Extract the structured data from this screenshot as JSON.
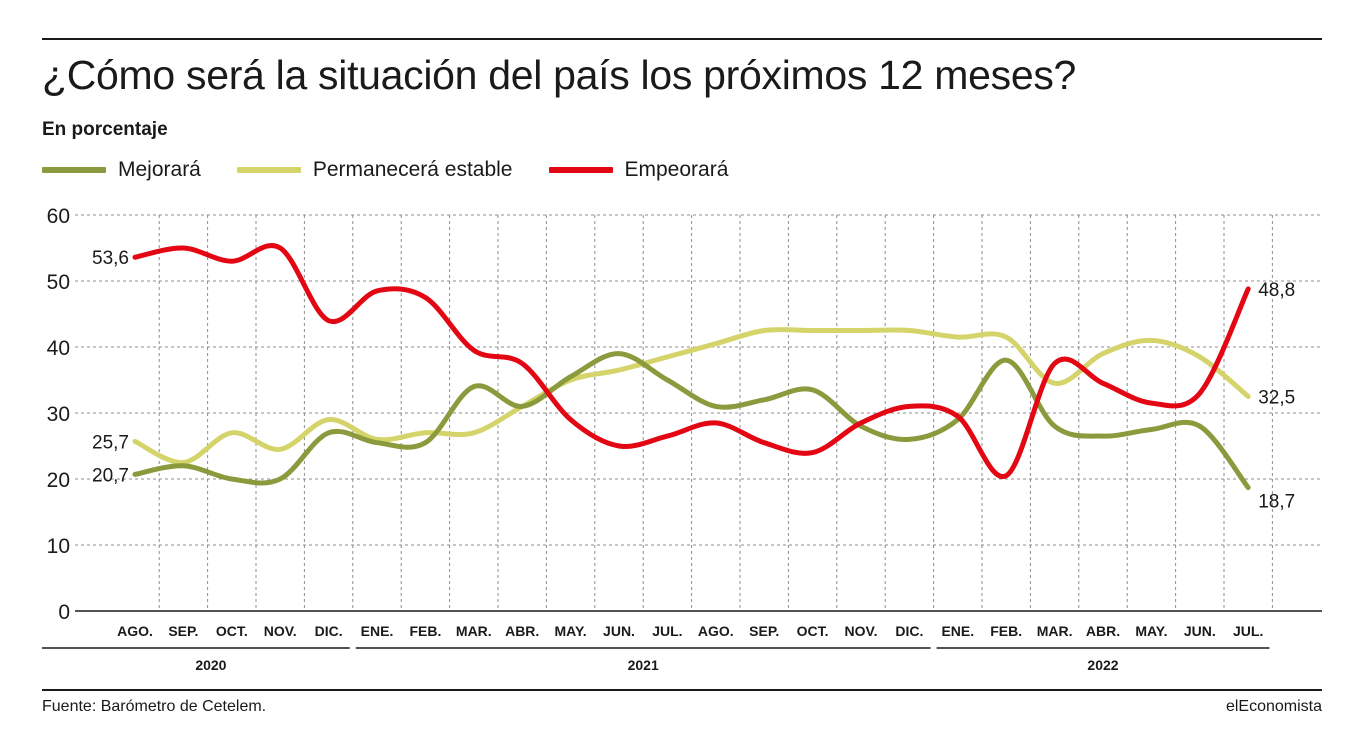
{
  "header": {
    "title": "¿Cómo será la situación del país los próximos 12 meses?",
    "subtitle": "En porcentaje"
  },
  "footer": {
    "source": "Fuente: Barómetro de Cetelem.",
    "brand": "elEconomista"
  },
  "colors": {
    "mejorara": "#8a9a3c",
    "permanecera": "#d4d46b",
    "empeorara": "#e30613"
  },
  "chart_data": {
    "type": "line",
    "title": "¿Cómo será la situación del país los próximos 12 meses?",
    "subtitle": "En porcentaje",
    "categories": [
      "AGO.",
      "SEP.",
      "OCT.",
      "NOV.",
      "DIC.",
      "ENE.",
      "FEB.",
      "MAR.",
      "ABR.",
      "MAY.",
      "JUN.",
      "JUL.",
      "AGO.",
      "SEP.",
      "OCT.",
      "NOV.",
      "DIC.",
      "ENE.",
      "FEB.",
      "MAR.",
      "ABR.",
      "MAY.",
      "JUN.",
      "JUL."
    ],
    "years": [
      {
        "label": "2020",
        "start": 0,
        "end": 4
      },
      {
        "label": "2021",
        "start": 5,
        "end": 16
      },
      {
        "label": "2022",
        "start": 17,
        "end": 23
      }
    ],
    "ylim": [
      0,
      60
    ],
    "yticks": [
      0,
      10,
      20,
      30,
      40,
      50,
      60
    ],
    "grid": true,
    "legend_position": "top-left",
    "series": [
      {
        "name": "Mejorará",
        "color_key": "mejorara",
        "values": [
          20.7,
          22,
          20,
          20,
          27,
          25.5,
          25.5,
          34,
          31,
          35.5,
          39,
          35,
          31,
          32,
          33.5,
          28,
          26,
          29,
          38,
          28,
          26.5,
          27.5,
          28,
          18.7
        ],
        "start_label": "20,7",
        "end_label": "18,7"
      },
      {
        "name": "Permanecerá estable",
        "color_key": "permanecera",
        "values": [
          25.7,
          22.5,
          27,
          24.5,
          29,
          26,
          27,
          27,
          31,
          35,
          36.5,
          38.5,
          40.5,
          42.5,
          42.5,
          42.5,
          42.5,
          41.5,
          41.5,
          34.5,
          39,
          41,
          38.5,
          32.5
        ],
        "start_label": "25,7",
        "end_label": "32,5"
      },
      {
        "name": "Empeorará",
        "color_key": "empeorara",
        "values": [
          53.6,
          55,
          53,
          55,
          44,
          48.5,
          47.5,
          39.5,
          37.5,
          29,
          25,
          26.5,
          28.5,
          25.5,
          24,
          28.5,
          31,
          29.5,
          20.5,
          37.5,
          34.5,
          31.5,
          33,
          48.8
        ],
        "start_label": "53,6",
        "end_label": "48,8"
      }
    ]
  }
}
